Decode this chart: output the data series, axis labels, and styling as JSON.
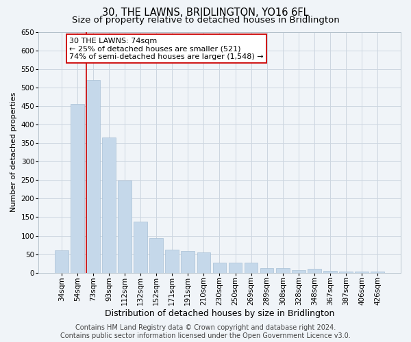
{
  "title": "30, THE LAWNS, BRIDLINGTON, YO16 6FL",
  "subtitle": "Size of property relative to detached houses in Bridlington",
  "xlabel": "Distribution of detached houses by size in Bridlington",
  "ylabel": "Number of detached properties",
  "categories": [
    "34sqm",
    "54sqm",
    "73sqm",
    "93sqm",
    "112sqm",
    "132sqm",
    "152sqm",
    "171sqm",
    "191sqm",
    "210sqm",
    "230sqm",
    "250sqm",
    "269sqm",
    "289sqm",
    "308sqm",
    "328sqm",
    "348sqm",
    "367sqm",
    "387sqm",
    "406sqm",
    "426sqm"
  ],
  "values": [
    60,
    455,
    520,
    365,
    248,
    138,
    93,
    62,
    58,
    55,
    27,
    27,
    27,
    12,
    12,
    7,
    10,
    5,
    3,
    4,
    3
  ],
  "bar_color": "#c5d8ea",
  "bar_edge_color": "#a8c0d6",
  "grid_color": "#ccd6e0",
  "vline_x_index": 2,
  "vline_color": "#cc0000",
  "annotation_text": "30 THE LAWNS: 74sqm\n← 25% of detached houses are smaller (521)\n74% of semi-detached houses are larger (1,548) →",
  "annotation_box_color": "#ffffff",
  "annotation_box_edge": "#cc0000",
  "ylim": [
    0,
    650
  ],
  "yticks": [
    0,
    50,
    100,
    150,
    200,
    250,
    300,
    350,
    400,
    450,
    500,
    550,
    600,
    650
  ],
  "footer_text": "Contains HM Land Registry data © Crown copyright and database right 2024.\nContains public sector information licensed under the Open Government Licence v3.0.",
  "bg_color": "#f0f4f8",
  "title_fontsize": 10.5,
  "subtitle_fontsize": 9.5,
  "xlabel_fontsize": 9,
  "ylabel_fontsize": 8,
  "tick_fontsize": 7.5,
  "footer_fontsize": 7,
  "annot_fontsize": 8
}
